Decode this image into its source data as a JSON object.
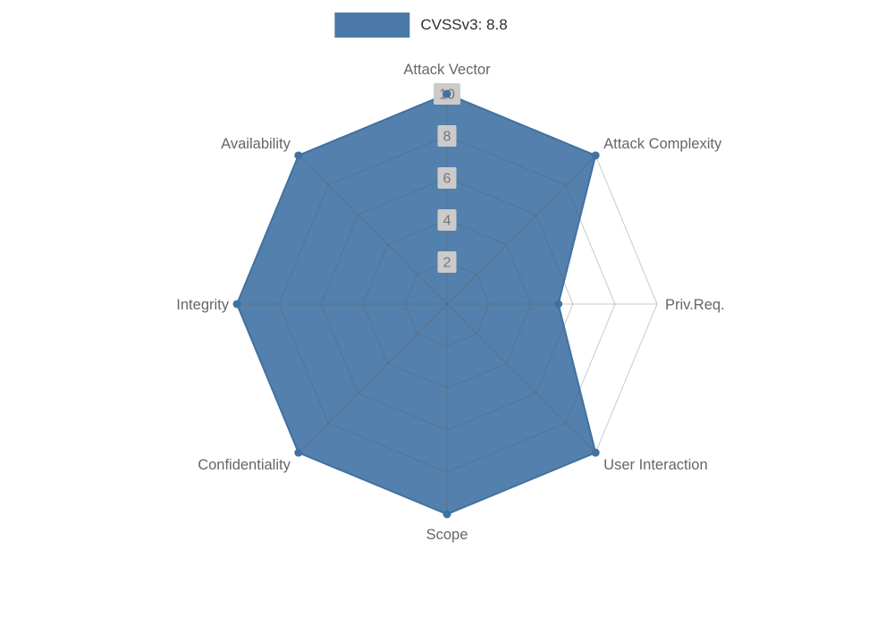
{
  "chart_data": {
    "type": "radar",
    "legend": "CVSSv3: 8.8",
    "max": 10,
    "range": [
      0,
      10
    ],
    "ticks": [
      2,
      4,
      6,
      8,
      10
    ],
    "grid": true,
    "legend_position": "top-center",
    "categories": [
      "Attack Vector",
      "Attack Complexity",
      "Priv.Req.",
      "User Interaction",
      "Scope",
      "Confidentiality",
      "Integrity",
      "Availability"
    ],
    "series": [
      {
        "name": "CVSSv3: 8.8",
        "values": [
          10,
          10,
          5.3,
          10,
          10,
          10,
          10,
          10
        ]
      }
    ],
    "colors": {
      "area_fill": "#4a79a8",
      "area_stroke": "#41719f",
      "point": "#41719f",
      "grid_line": "#5a5a5a",
      "tick_box": "#cbcbcb",
      "tick_text": "#757575",
      "axis_label": "#666666",
      "legend_text": "#2f2f2f"
    }
  }
}
